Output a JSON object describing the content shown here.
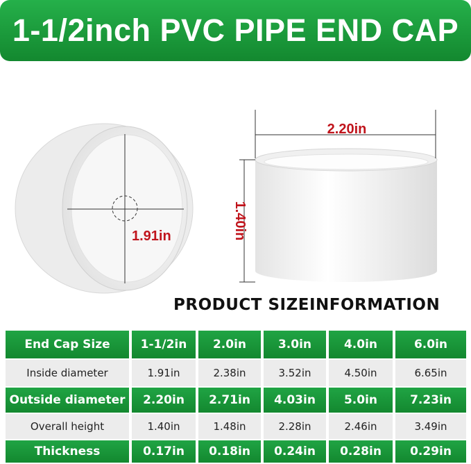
{
  "header": {
    "title": "1-1/2inch PVC PIPE END CAP"
  },
  "figure": {
    "inside_label": "1.91in",
    "width_label": "2.20in",
    "height_label": "1.40in"
  },
  "section_title": "PRODUCT SIZEINFORMATION",
  "table": {
    "rows": [
      [
        "End Cap Size",
        "1-1/2in",
        "2.0in",
        "3.0in",
        "4.0in",
        "6.0in"
      ],
      [
        "Inside diameter",
        "1.91in",
        "2.38in",
        "3.52in",
        "4.50in",
        "6.65in"
      ],
      [
        "Outside diameter",
        "2.20in",
        "2.71in",
        "4.03in",
        "5.0in",
        "7.23in"
      ],
      [
        "Overall height",
        "1.40in",
        "1.48in",
        "2.28in",
        "2.46in",
        "3.49in"
      ],
      [
        "Thickness",
        "0.17in",
        "0.18in",
        "0.24in",
        "0.28in",
        "0.29in"
      ]
    ]
  }
}
